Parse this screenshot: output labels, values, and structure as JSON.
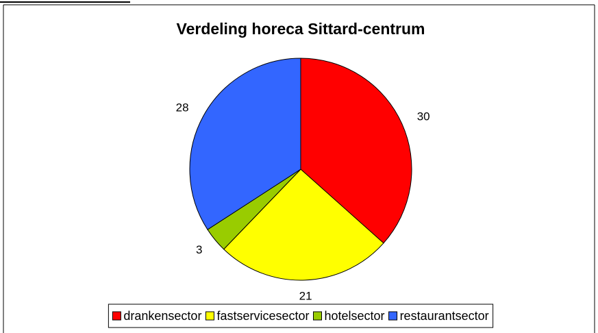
{
  "chart_data": {
    "type": "pie",
    "title": "Verdeling horeca Sittard-centrum",
    "categories": [
      "drankensector",
      "fastservicesector",
      "hotelsector",
      "restaurantsector"
    ],
    "values": [
      30,
      21,
      3,
      28
    ],
    "colors": [
      "#ff0000",
      "#ffff00",
      "#99cc00",
      "#3366ff"
    ],
    "legend": "bottom"
  }
}
